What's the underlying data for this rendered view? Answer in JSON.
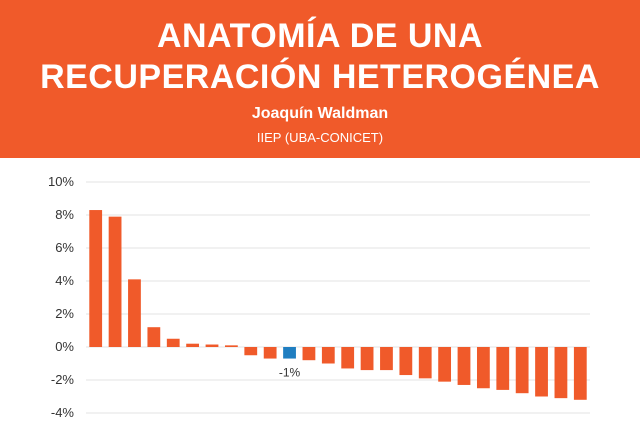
{
  "header": {
    "title_line1": "ANATOMÍA DE UNA",
    "title_line2": "RECUPERACIÓN HETEROGÉNEA",
    "author": "Joaquín Waldman",
    "institution": "IIEP (UBA-CONICET)"
  },
  "colors": {
    "banner": "#f05a2a",
    "bar": "#f05a2a",
    "highlight": "#1f7ec1",
    "grid": "#e3e3e3"
  },
  "chart_data": {
    "type": "bar",
    "title": "",
    "xlabel": "",
    "ylabel": "",
    "ylim": [
      -4,
      10
    ],
    "yticks": [
      -4,
      -2,
      0,
      2,
      4,
      6,
      8,
      10
    ],
    "ytick_format": "percent",
    "grid": true,
    "values": [
      8.3,
      7.9,
      4.1,
      1.2,
      0.5,
      0.2,
      0.15,
      0.1,
      -0.5,
      -0.7,
      -0.7,
      -0.8,
      -1.0,
      -1.3,
      -1.4,
      -1.4,
      -1.7,
      -1.9,
      -2.1,
      -2.3,
      -2.5,
      -2.6,
      -2.8,
      -3.0,
      -3.1,
      -3.2
    ],
    "highlight_index": 10,
    "annotations": [
      {
        "index": 10,
        "text": "-1%"
      }
    ]
  }
}
